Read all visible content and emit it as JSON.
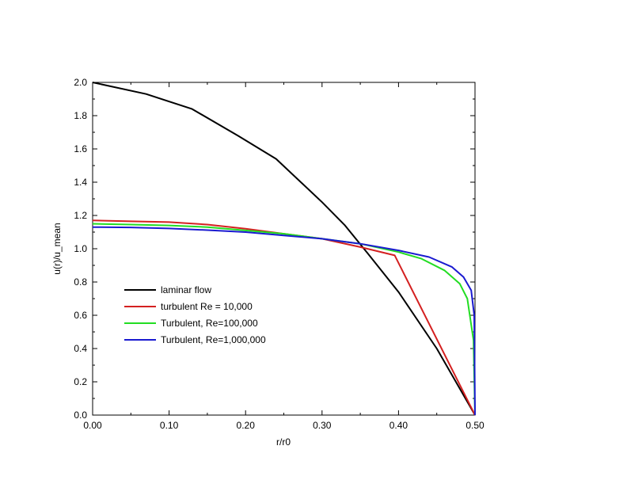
{
  "chart_data": {
    "type": "line",
    "xlabel": "r/r0",
    "ylabel": "u(r)/u_mean",
    "xlim": [
      0,
      0.5
    ],
    "ylim": [
      0,
      2.0
    ],
    "x_ticks": [
      "0.00",
      "0.10",
      "0.20",
      "0.30",
      "0.40",
      "0.50"
    ],
    "y_ticks": [
      "0.0",
      "0.2",
      "0.4",
      "0.6",
      "0.8",
      "1.0",
      "1.2",
      "1.4",
      "1.6",
      "1.8",
      "2.0"
    ],
    "grid": false,
    "legend_position": "lower-left",
    "series": [
      {
        "name": "laminar flow",
        "color": "#000000",
        "x": [
          0.0,
          0.07,
          0.13,
          0.19,
          0.24,
          0.3,
          0.33,
          0.36,
          0.4,
          0.45,
          0.5
        ],
        "y": [
          2.0,
          1.93,
          1.84,
          1.68,
          1.54,
          1.28,
          1.14,
          0.97,
          0.74,
          0.4,
          0.0
        ]
      },
      {
        "name": "turbulent Re = 10,000",
        "color": "#d42020",
        "x": [
          0.0,
          0.05,
          0.1,
          0.15,
          0.2,
          0.25,
          0.3,
          0.35,
          0.395,
          0.5
        ],
        "y": [
          1.17,
          1.165,
          1.16,
          1.145,
          1.12,
          1.09,
          1.06,
          1.01,
          0.96,
          0.0
        ]
      },
      {
        "name": "Turbulent, Re=100,000",
        "color": "#22dd22",
        "x": [
          0.0,
          0.05,
          0.1,
          0.15,
          0.2,
          0.25,
          0.3,
          0.35,
          0.4,
          0.43,
          0.46,
          0.48,
          0.49,
          0.498,
          0.5
        ],
        "y": [
          1.15,
          1.145,
          1.14,
          1.13,
          1.11,
          1.09,
          1.06,
          1.03,
          0.98,
          0.94,
          0.87,
          0.79,
          0.7,
          0.45,
          0.0
        ]
      },
      {
        "name": "Turbulent, Re=1,000,000",
        "color": "#1a1ad0",
        "x": [
          0.0,
          0.05,
          0.1,
          0.15,
          0.2,
          0.25,
          0.3,
          0.35,
          0.4,
          0.44,
          0.47,
          0.485,
          0.495,
          0.499,
          0.5
        ],
        "y": [
          1.13,
          1.128,
          1.122,
          1.112,
          1.1,
          1.08,
          1.06,
          1.03,
          0.99,
          0.95,
          0.89,
          0.83,
          0.75,
          0.6,
          0.0
        ]
      }
    ]
  }
}
